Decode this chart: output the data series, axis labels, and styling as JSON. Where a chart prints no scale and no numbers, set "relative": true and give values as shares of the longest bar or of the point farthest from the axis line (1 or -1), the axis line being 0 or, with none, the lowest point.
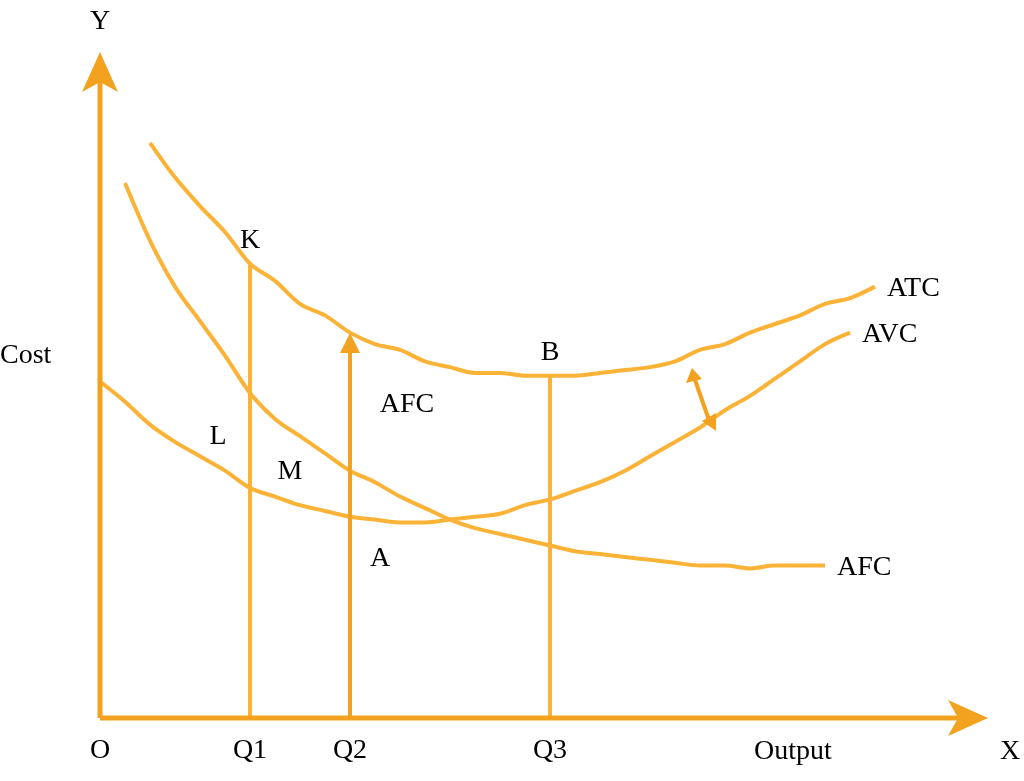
{
  "chart_data": {
    "type": "line",
    "relative": true,
    "marker": "none",
    "line_style": "solid",
    "xlabel": "Output",
    "ylabel": "Cost",
    "categories": [
      "O",
      null,
      null,
      null,
      null,
      null,
      "Q1",
      null,
      null,
      null,
      "Q2",
      null,
      null,
      null,
      null,
      null,
      null,
      null,
      "Q3",
      null,
      null,
      null,
      null,
      null,
      null,
      null,
      null,
      null,
      null,
      null,
      null,
      null,
      null,
      null,
      null,
      null
    ],
    "series": [
      {
        "name": "ATC",
        "color": "#fbb337",
        "values": [
          null,
          null,
          1.0,
          0.94,
          0.89,
          0.845,
          0.79,
          0.76,
          0.72,
          0.7,
          0.67,
          0.65,
          0.64,
          0.62,
          0.61,
          0.6,
          0.6,
          0.595,
          0.595,
          0.595,
          0.6,
          0.605,
          0.61,
          0.62,
          0.64,
          0.65,
          0.67,
          0.685,
          0.7,
          0.72,
          0.73,
          0.75,
          null,
          null,
          null,
          null
        ]
      },
      {
        "name": "AVC",
        "color": "#fbb337",
        "values": [
          0.585,
          0.55,
          0.51,
          0.48,
          0.455,
          0.43,
          0.4,
          0.385,
          0.37,
          0.36,
          0.35,
          0.345,
          0.34,
          0.34,
          0.345,
          0.35,
          0.355,
          0.37,
          0.38,
          0.395,
          0.41,
          0.43,
          0.455,
          0.48,
          0.505,
          0.535,
          0.56,
          0.59,
          0.62,
          0.65,
          0.67,
          null,
          null,
          null,
          null,
          null
        ]
      },
      {
        "name": "AFC",
        "color": "#fbb337",
        "values": [
          null,
          0.93,
          0.83,
          0.75,
          0.69,
          0.63,
          0.565,
          0.52,
          0.49,
          0.46,
          0.43,
          0.41,
          0.385,
          0.365,
          0.345,
          0.33,
          0.32,
          0.31,
          0.3,
          0.29,
          0.285,
          0.28,
          0.275,
          0.27,
          0.265,
          0.265,
          0.26,
          0.265,
          0.265,
          0.265,
          null,
          null,
          null,
          null,
          null,
          null
        ]
      },
      {
        "type": "line",
        "color": "#fbb337",
        "x": [
          "Q1",
          "Q1"
        ],
        "values": [
          0,
          0.79
        ]
      },
      {
        "type": "line",
        "color": "#fbb337",
        "x": [
          "Q3",
          "Q3"
        ],
        "values": [
          0,
          0.595
        ]
      }
    ],
    "annotations": [
      "Y",
      "X",
      "L",
      "M",
      "A",
      "AFC",
      {
        "text": "K",
        "x": "Q1",
        "y": 0.79
      },
      {
        "text": "B",
        "x": "Q3",
        "y": 0.595
      }
    ]
  }
}
